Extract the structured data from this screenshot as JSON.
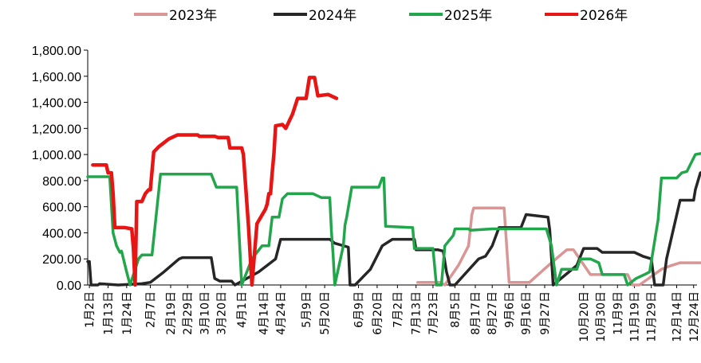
{
  "chart_data": {
    "type": "line",
    "title": "",
    "xlabel": "",
    "ylabel": "",
    "ylim": [
      0,
      1800
    ],
    "yticks": [
      0,
      200,
      400,
      600,
      800,
      1000,
      1200,
      1400,
      1600,
      1800
    ],
    "ytick_labels": [
      "0.00",
      "200.00",
      "400.00",
      "600.00",
      "800.00",
      "1,000.00",
      "1,200.00",
      "1,400.00",
      "1,600.00",
      "1,800.00"
    ],
    "x_day_range": [
      1,
      361
    ],
    "categories": [
      "1月2日",
      "1月13日",
      "1月24日",
      "2月7日",
      "2月19日",
      "2月29日",
      "3月10日",
      "3月20日",
      "4月1日",
      "4月14日",
      "4月24日",
      "5月9日",
      "5月20日",
      "6月9日",
      "6月20日",
      "7月2日",
      "7月13日",
      "7月23日",
      "8月5日",
      "8月17日",
      "8月27日",
      "9月6日",
      "9月16日",
      "9月27日",
      "10月20日",
      "10月30日",
      "11月9日",
      "11月19日",
      "11月29日",
      "12月14日",
      "12月24日"
    ],
    "category_days": [
      2,
      13,
      24,
      38,
      50,
      60,
      70,
      80,
      92,
      105,
      115,
      130,
      141,
      161,
      172,
      184,
      195,
      205,
      218,
      230,
      240,
      250,
      260,
      271,
      294,
      304,
      314,
      324,
      334,
      349,
      359
    ],
    "legend_position": "top",
    "grid": false,
    "series": [
      {
        "name": "2023年",
        "color": "#d99694",
        "width": 3.5,
        "points": [
          [
            196,
            20
          ],
          [
            209,
            20
          ],
          [
            212,
            0
          ],
          [
            220,
            150
          ],
          [
            226,
            300
          ],
          [
            228,
            540
          ],
          [
            229,
            590
          ],
          [
            247,
            590
          ],
          [
            250,
            20
          ],
          [
            262,
            20
          ],
          [
            268,
            90
          ],
          [
            275,
            170
          ],
          [
            284,
            270
          ],
          [
            288,
            270
          ],
          [
            298,
            80
          ],
          [
            320,
            80
          ],
          [
            323,
            0
          ],
          [
            327,
            0
          ],
          [
            340,
            120
          ],
          [
            346,
            150
          ],
          [
            351,
            170
          ],
          [
            363,
            170
          ]
        ]
      },
      {
        "name": "2024年",
        "color": "#262626",
        "width": 3.5,
        "points": [
          [
            1,
            180
          ],
          [
            2,
            180
          ],
          [
            3,
            0
          ],
          [
            7,
            0
          ],
          [
            8,
            10
          ],
          [
            19,
            0
          ],
          [
            33,
            10
          ],
          [
            38,
            20
          ],
          [
            46,
            100
          ],
          [
            55,
            200
          ],
          [
            57,
            210
          ],
          [
            74,
            210
          ],
          [
            76,
            50
          ],
          [
            79,
            30
          ],
          [
            86,
            30
          ],
          [
            88,
            0
          ],
          [
            102,
            100
          ],
          [
            112,
            200
          ],
          [
            115,
            350
          ],
          [
            144,
            350
          ],
          [
            147,
            320
          ],
          [
            155,
            290
          ],
          [
            156,
            0
          ],
          [
            159,
            0
          ],
          [
            168,
            120
          ],
          [
            175,
            300
          ],
          [
            181,
            350
          ],
          [
            194,
            350
          ],
          [
            195,
            270
          ],
          [
            208,
            270
          ],
          [
            211,
            260
          ],
          [
            213,
            100
          ],
          [
            215,
            0
          ],
          [
            218,
            0
          ],
          [
            232,
            200
          ],
          [
            236,
            220
          ],
          [
            240,
            300
          ],
          [
            244,
            440
          ],
          [
            257,
            440
          ],
          [
            260,
            540
          ],
          [
            273,
            520
          ],
          [
            274,
            420
          ],
          [
            276,
            0
          ],
          [
            290,
            150
          ],
          [
            294,
            280
          ],
          [
            302,
            280
          ],
          [
            305,
            250
          ],
          [
            324,
            250
          ],
          [
            329,
            220
          ],
          [
            334,
            200
          ],
          [
            336,
            0
          ],
          [
            341,
            0
          ],
          [
            343,
            200
          ],
          [
            351,
            650
          ],
          [
            359,
            650
          ],
          [
            360,
            730
          ],
          [
            363,
            860
          ],
          [
            367,
            870
          ],
          [
            371,
            870
          ]
        ]
      },
      {
        "name": "2025年",
        "color": "#22a64b",
        "width": 3.5,
        "points": [
          [
            1,
            830
          ],
          [
            14,
            830
          ],
          [
            16,
            400
          ],
          [
            18,
            300
          ],
          [
            20,
            250
          ],
          [
            21,
            260
          ],
          [
            24,
            100
          ],
          [
            26,
            0
          ],
          [
            31,
            200
          ],
          [
            33,
            230
          ],
          [
            39,
            230
          ],
          [
            44,
            850
          ],
          [
            74,
            850
          ],
          [
            77,
            750
          ],
          [
            89,
            750
          ],
          [
            92,
            0
          ],
          [
            98,
            200
          ],
          [
            104,
            300
          ],
          [
            108,
            300
          ],
          [
            110,
            520
          ],
          [
            114,
            520
          ],
          [
            116,
            660
          ],
          [
            119,
            700
          ],
          [
            134,
            700
          ],
          [
            139,
            670
          ],
          [
            144,
            670
          ],
          [
            145,
            410
          ],
          [
            146,
            230
          ],
          [
            147,
            0
          ],
          [
            152,
            300
          ],
          [
            153,
            460
          ],
          [
            154,
            520
          ],
          [
            157,
            750
          ],
          [
            173,
            750
          ],
          [
            175,
            820
          ],
          [
            176,
            820
          ],
          [
            177,
            450
          ],
          [
            193,
            440
          ],
          [
            194,
            280
          ],
          [
            197,
            280
          ],
          [
            205,
            280
          ],
          [
            207,
            0
          ],
          [
            210,
            0
          ],
          [
            212,
            300
          ],
          [
            217,
            380
          ],
          [
            218,
            430
          ],
          [
            226,
            430
          ],
          [
            227,
            420
          ],
          [
            240,
            430
          ],
          [
            272,
            430
          ],
          [
            275,
            300
          ],
          [
            276,
            200
          ],
          [
            278,
            0
          ],
          [
            281,
            120
          ],
          [
            290,
            120
          ],
          [
            292,
            200
          ],
          [
            298,
            200
          ],
          [
            303,
            170
          ],
          [
            305,
            80
          ],
          [
            318,
            80
          ],
          [
            320,
            0
          ],
          [
            325,
            50
          ],
          [
            330,
            80
          ],
          [
            333,
            100
          ],
          [
            338,
            500
          ],
          [
            340,
            820
          ],
          [
            349,
            820
          ],
          [
            352,
            860
          ],
          [
            355,
            870
          ],
          [
            360,
            1000
          ],
          [
            364,
            1010
          ]
        ]
      },
      {
        "name": "2026年",
        "color": "#e81515",
        "width": 4.5,
        "points": [
          [
            4,
            920
          ],
          [
            12,
            920
          ],
          [
            13,
            860
          ],
          [
            15,
            860
          ],
          [
            16,
            700
          ],
          [
            17,
            440
          ],
          [
            23,
            440
          ],
          [
            27,
            430
          ],
          [
            28,
            280
          ],
          [
            29,
            0
          ],
          [
            30,
            640
          ],
          [
            33,
            640
          ],
          [
            35,
            700
          ],
          [
            37,
            730
          ],
          [
            38,
            730
          ],
          [
            40,
            1020
          ],
          [
            43,
            1060
          ],
          [
            49,
            1120
          ],
          [
            54,
            1150
          ],
          [
            66,
            1150
          ],
          [
            67,
            1140
          ],
          [
            76,
            1140
          ],
          [
            78,
            1130
          ],
          [
            84,
            1130
          ],
          [
            85,
            1050
          ],
          [
            92,
            1050
          ],
          [
            93,
            1000
          ],
          [
            96,
            450
          ],
          [
            98,
            0
          ],
          [
            101,
            470
          ],
          [
            106,
            580
          ],
          [
            107,
            620
          ],
          [
            108,
            700
          ],
          [
            109,
            700
          ],
          [
            110,
            860
          ],
          [
            111,
            1000
          ],
          [
            112,
            1220
          ],
          [
            116,
            1230
          ],
          [
            118,
            1200
          ],
          [
            122,
            1310
          ],
          [
            125,
            1430
          ],
          [
            130,
            1430
          ],
          [
            132,
            1590
          ],
          [
            135,
            1590
          ],
          [
            137,
            1450
          ],
          [
            143,
            1460
          ],
          [
            148,
            1430
          ]
        ]
      }
    ]
  }
}
